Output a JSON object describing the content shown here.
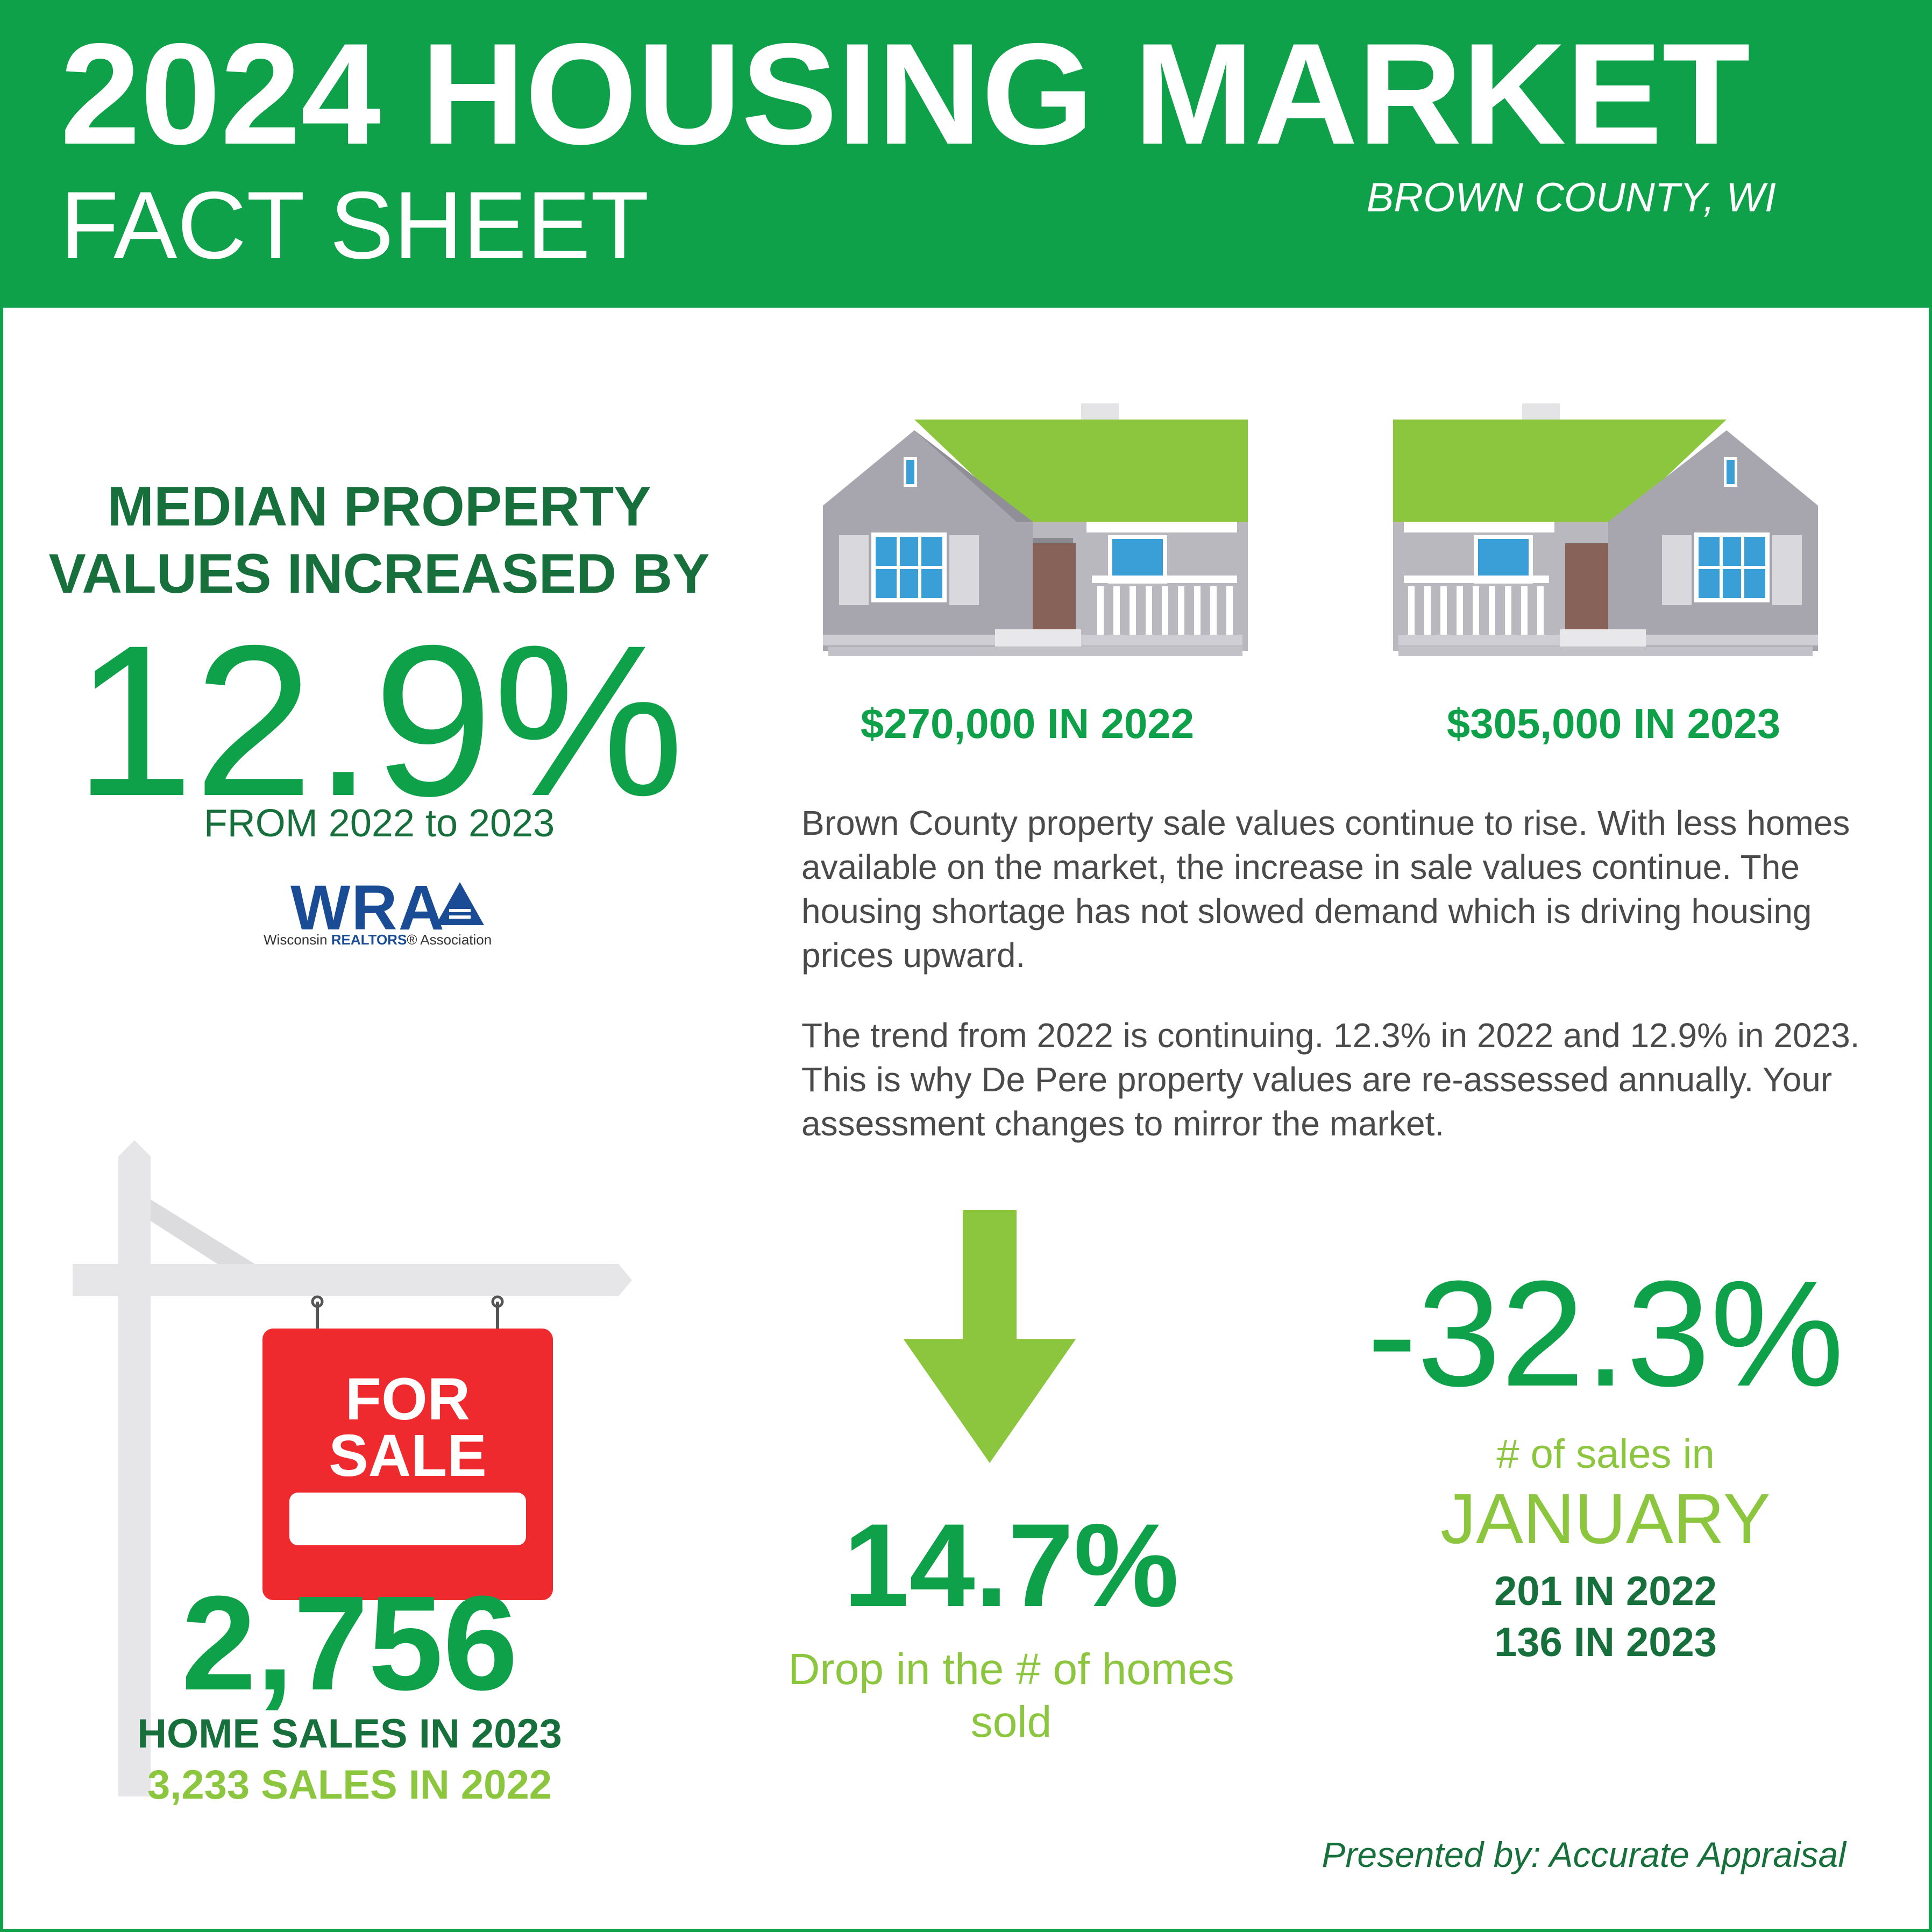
{
  "header": {
    "title": "2024 HOUSING MARKET",
    "subtitle": "FACT SHEET",
    "location": "BROWN COUNTY, WI"
  },
  "median": {
    "heading": "MEDIAN PROPERTY VALUES INCREASED BY",
    "percent": "12.9%",
    "range": "FROM 2022 to 2023",
    "source_logo": {
      "letters": "WRA",
      "sub_pre": "Wisconsin ",
      "sub_brand": "REALTORS",
      "sub_post": "® Association"
    }
  },
  "houses": [
    {
      "price": "$270,000 IN 2022"
    },
    {
      "price": "$305,000 IN 2023"
    }
  ],
  "description": {
    "paragraph1": "Brown County property sale values continue to rise. With less homes available on the market, the increase in sale values continue. The housing shortage has not slowed demand which is driving housing prices upward.",
    "paragraph2": "The trend from 2022 is continuing. 12.3% in 2022 and 12.9% in 2023.  This is why De Pere property values are re-assessed annually. Your assessment changes to mirror the market."
  },
  "sign": {
    "line1": "FOR",
    "line2": "SALE"
  },
  "home_sales": {
    "count": "2,756",
    "label_2023": "HOME SALES IN 2023",
    "label_2022": "3,233 SALES IN 2022"
  },
  "drop": {
    "percent": "14.7%",
    "label": "Drop in the # of homes sold"
  },
  "january": {
    "percent": "-32.3%",
    "label": "# of sales in",
    "month": "JANUARY",
    "line_2022": "201 IN 2022",
    "line_2023": "136 IN 2023"
  },
  "footer": {
    "presented_by": "Presented by: Accurate Appraisal"
  },
  "colors": {
    "brand_green": "#0fa04a",
    "dark_green": "#17703c",
    "light_green": "#8cc63f",
    "sign_red": "#ee2a2f",
    "logo_blue": "#1a4c95"
  }
}
